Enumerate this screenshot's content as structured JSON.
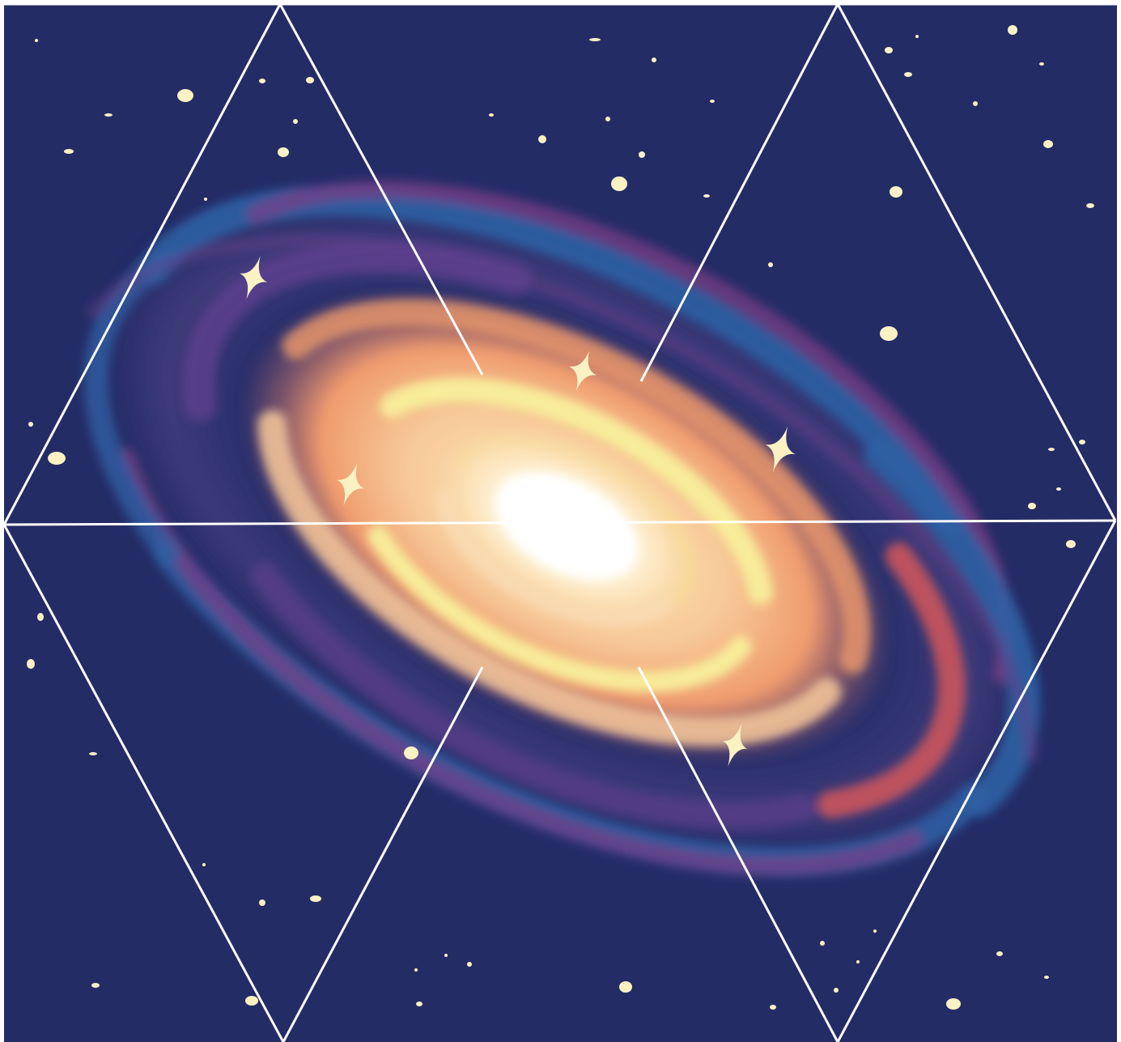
{
  "colors": {
    "sky": "#242c66",
    "arm_blue": "#2f5fa3",
    "arm_purple": "#7a3f86",
    "arm_red": "#d2555a",
    "disk_orange": "#f2a272",
    "disk_peach": "#f7c89b",
    "disk_yellow": "#f8ef9a",
    "core_white": "#fffdf3",
    "star": "#fbf2c4",
    "outline": "#ffffff"
  },
  "icons": {
    "sparkle": "four-point-star-icon",
    "star": "dot-star-icon"
  },
  "canvas_stars": [
    {
      "n": 1
    },
    {
      "n": 2
    },
    {
      "n": 3
    }
  ]
}
